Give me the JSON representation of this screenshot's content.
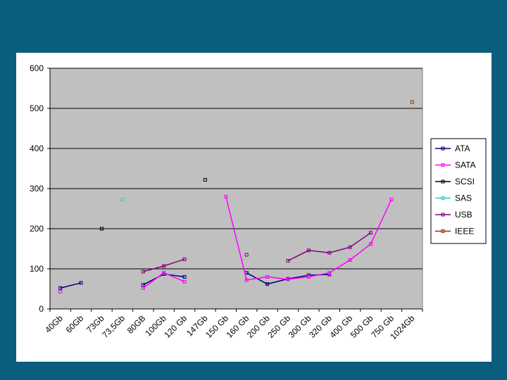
{
  "colors": {
    "slide_background": "#0b5d7e",
    "panel_background": "#ffffff",
    "plot_background": "#c0c0c0",
    "gridline": "#000000"
  },
  "chart_data": {
    "type": "line",
    "title": "",
    "xlabel": "",
    "ylabel": "",
    "ylim": [
      0,
      600
    ],
    "yticks": [
      0,
      100,
      200,
      300,
      400,
      500,
      600
    ],
    "grid": true,
    "legend_position": "right",
    "categories": [
      "40Gb",
      "60Gb",
      "73Gb",
      "73,5Gb",
      "80GB",
      "100Gb",
      "120 Gb",
      "147Gb",
      "150 Gb",
      "160 Gb",
      "200 Gb",
      "250 Gb",
      "300 Gb",
      "320 Gb",
      "400 Gb",
      "500 Gb",
      "750 Gb",
      "1024Gb"
    ],
    "series": [
      {
        "name": "ATA",
        "color": "#000080",
        "values": [
          52,
          65,
          null,
          null,
          60,
          87,
          80,
          null,
          null,
          90,
          62,
          75,
          84,
          86,
          null,
          null,
          null,
          null
        ]
      },
      {
        "name": "SATA",
        "color": "#ff00ff",
        "values": [
          43,
          null,
          null,
          null,
          52,
          90,
          68,
          null,
          280,
          72,
          80,
          74,
          80,
          90,
          122,
          162,
          273,
          null
        ]
      },
      {
        "name": "SCSI",
        "color": "#000000",
        "values": [
          null,
          null,
          200,
          null,
          null,
          null,
          null,
          322,
          null,
          null,
          null,
          null,
          null,
          null,
          null,
          null,
          null,
          null
        ]
      },
      {
        "name": "SAS",
        "color": "#33cccc",
        "values": [
          null,
          null,
          null,
          273,
          null,
          null,
          null,
          null,
          null,
          null,
          null,
          null,
          null,
          null,
          null,
          null,
          null,
          null
        ]
      },
      {
        "name": "USB",
        "color": "#800080",
        "values": [
          null,
          null,
          null,
          null,
          93,
          107,
          124,
          null,
          null,
          135,
          null,
          120,
          146,
          140,
          154,
          190,
          null,
          null
        ]
      },
      {
        "name": "IEEE",
        "color": "#993300",
        "values": [
          null,
          null,
          null,
          null,
          null,
          null,
          null,
          null,
          null,
          null,
          null,
          null,
          null,
          null,
          null,
          null,
          null,
          516
        ]
      }
    ]
  }
}
